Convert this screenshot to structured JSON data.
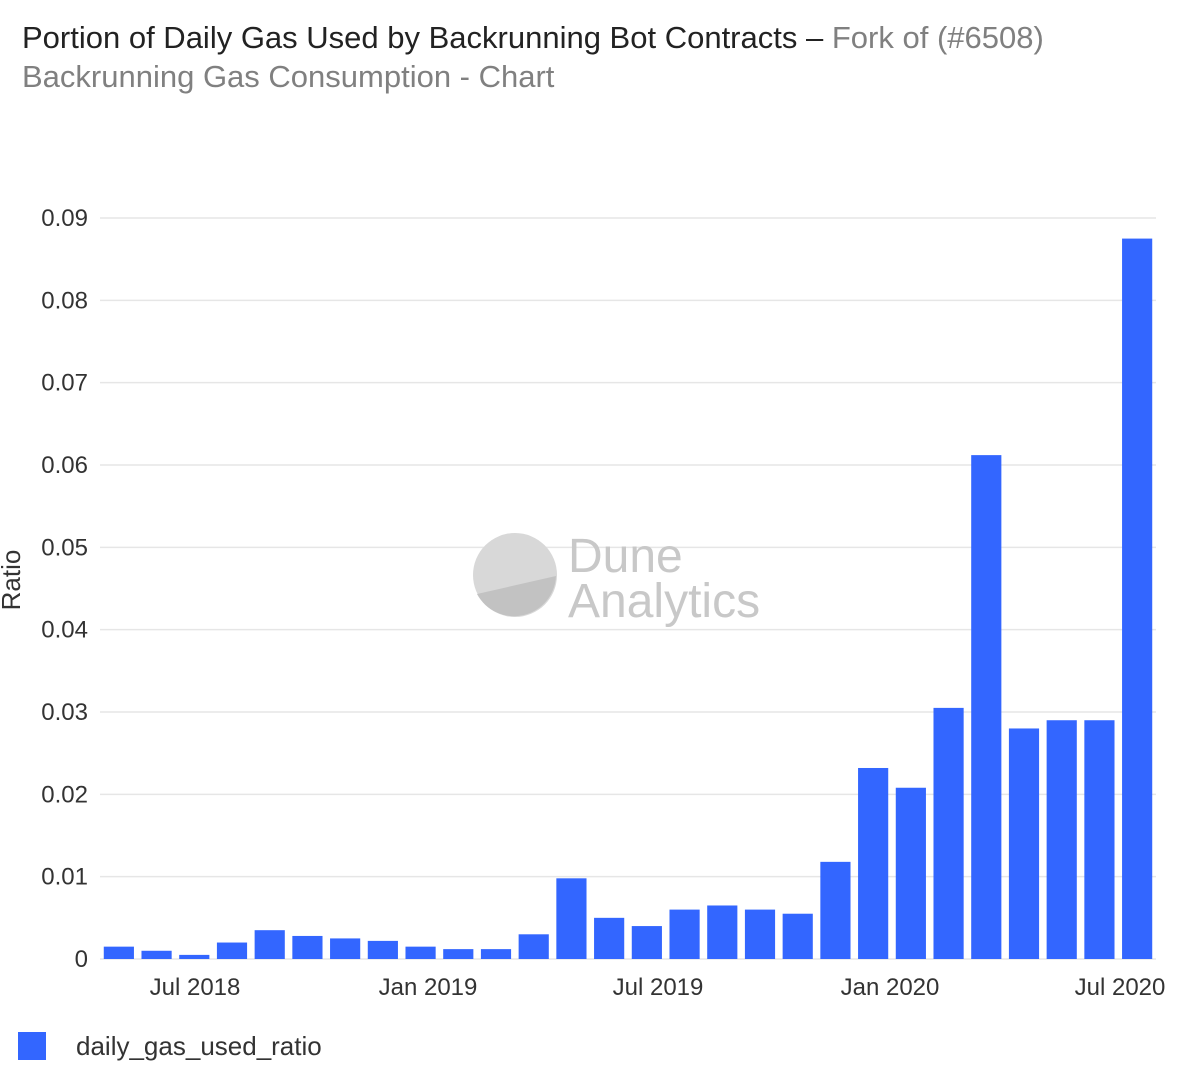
{
  "title": {
    "main": "Portion of Daily Gas Used by Backrunning Bot Contracts",
    "separator": "–",
    "sub": "Fork of (#6508) Backrunning Gas Consumption - Chart"
  },
  "watermark": {
    "line1": "Dune",
    "line2": "Analytics"
  },
  "colors": {
    "bar": "#3366ff",
    "grid": "#e6e6e6",
    "text": "#333333",
    "watermark": "#c8c8c8"
  },
  "chart_data": {
    "type": "bar",
    "title": "Portion of Daily Gas Used by Backrunning Bot Contracts",
    "xlabel": "",
    "ylabel": "Ratio",
    "ylim": [
      0,
      0.09
    ],
    "y_ticks": [
      "0",
      "0.01",
      "0.02",
      "0.03",
      "0.04",
      "0.05",
      "0.06",
      "0.07",
      "0.08",
      "0.09"
    ],
    "x_ticks": [
      "Jul 2018",
      "Jan 2019",
      "Jul 2019",
      "Jan 2020",
      "Jul 2020"
    ],
    "grid": true,
    "legend_position": "bottom-left",
    "series": [
      {
        "name": "daily_gas_used_ratio",
        "x": [
          "2018-04",
          "2018-05",
          "2018-06",
          "2018-07",
          "2018-08",
          "2018-09",
          "2018-10",
          "2018-11",
          "2018-12",
          "2019-01",
          "2019-02",
          "2019-03",
          "2019-04",
          "2019-05",
          "2019-06",
          "2019-07",
          "2019-08",
          "2019-09",
          "2019-10",
          "2019-11",
          "2019-12",
          "2020-01",
          "2020-02",
          "2020-03",
          "2020-04",
          "2020-05",
          "2020-06",
          "2020-07"
        ],
        "values": [
          0.0015,
          0.001,
          0.0005,
          0.002,
          0.0035,
          0.0028,
          0.0025,
          0.0022,
          0.0015,
          0.0012,
          0.0012,
          0.003,
          0.0098,
          0.005,
          0.004,
          0.006,
          0.0065,
          0.006,
          0.0055,
          0.0118,
          0.0232,
          0.0208,
          0.0305,
          0.0612,
          0.028,
          0.029,
          0.029,
          0.0875
        ]
      }
    ]
  }
}
